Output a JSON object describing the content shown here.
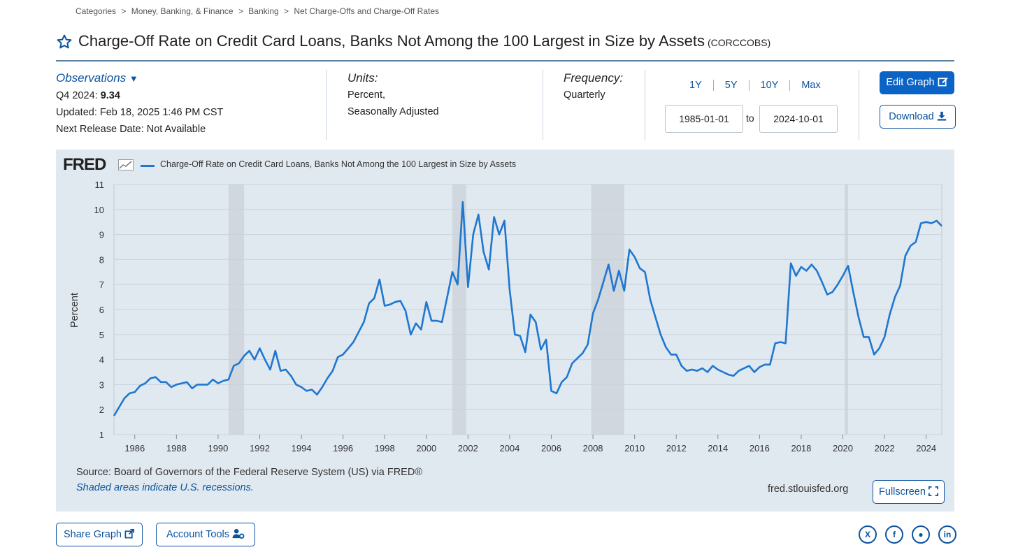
{
  "breadcrumbs": [
    "Categories",
    ">",
    "Money, Banking, & Finance",
    ">",
    "Banking",
    ">",
    "Net Charge-Offs and Charge-Off Rates"
  ],
  "header": {
    "title": "Charge-Off Rate on Credit Card Loans, Banks Not Among the 100 Largest in Size by Assets",
    "series_code": "(CORCCOBS)"
  },
  "observations": {
    "label": "Observations",
    "latest_period": "Q4 2024:",
    "latest_value": "9.34",
    "updated": "Updated: Feb 18, 2025 1:46 PM CST",
    "next_release": "Next Release Date: Not Available"
  },
  "units": {
    "label": "Units:",
    "line1": "Percent,",
    "line2": "Seasonally Adjusted"
  },
  "frequency": {
    "label": "Frequency:",
    "value": "Quarterly"
  },
  "ranges": [
    "1Y",
    "5Y",
    "10Y",
    "Max"
  ],
  "dates": {
    "start": "1985-01-01",
    "separator": "to",
    "end": "2024-10-01"
  },
  "buttons": {
    "edit_graph": "Edit Graph",
    "download": "Download",
    "fullscreen": "Fullscreen",
    "share_graph": "Share Graph",
    "account_tools": "Account Tools"
  },
  "chart_footer": {
    "logo": "FRED",
    "source": "Source: Board of Governors of the Federal Reserve System (US) via FRED®",
    "shaded_note": "Shaded areas indicate U.S. recessions.",
    "url": "fred.stlouisfed.org"
  },
  "social_icons": [
    "x-icon",
    "facebook-icon",
    "reddit-icon",
    "linkedin-icon"
  ],
  "colors": {
    "line": "#1f77d0",
    "accent": "#0c63c6",
    "link": "#0c54a0",
    "panel": "#e1e9f0",
    "recession": "#c9d0d8"
  },
  "chart_data": {
    "type": "line",
    "title": "",
    "ylabel": "Percent",
    "xlabel": "",
    "xlim": [
      1985.0,
      2024.75
    ],
    "ylim": [
      1,
      11
    ],
    "yticks": [
      "1",
      "2",
      "3",
      "4",
      "5",
      "6",
      "7",
      "8",
      "9",
      "10",
      "11"
    ],
    "xticks": [
      "1986",
      "1988",
      "1990",
      "1992",
      "1994",
      "1996",
      "1998",
      "2000",
      "2002",
      "2004",
      "2006",
      "2008",
      "2010",
      "2012",
      "2014",
      "2016",
      "2018",
      "2020",
      "2022",
      "2024"
    ],
    "legend": "top-left",
    "grid": true,
    "series": [
      {
        "name": "Charge-Off Rate on Credit Card Loans, Banks Not Among the 100 Largest in Size by Assets",
        "x": [
          1985.0,
          1985.25,
          1985.5,
          1985.75,
          1986.0,
          1986.25,
          1986.5,
          1986.75,
          1987.0,
          1987.25,
          1987.5,
          1987.75,
          1988.0,
          1988.25,
          1988.5,
          1988.75,
          1989.0,
          1989.25,
          1989.5,
          1989.75,
          1990.0,
          1990.25,
          1990.5,
          1990.75,
          1991.0,
          1991.25,
          1991.5,
          1991.75,
          1992.0,
          1992.25,
          1992.5,
          1992.75,
          1993.0,
          1993.25,
          1993.5,
          1993.75,
          1994.0,
          1994.25,
          1994.5,
          1994.75,
          1995.0,
          1995.25,
          1995.5,
          1995.75,
          1996.0,
          1996.25,
          1996.5,
          1996.75,
          1997.0,
          1997.25,
          1997.5,
          1997.75,
          1998.0,
          1998.25,
          1998.5,
          1998.75,
          1999.0,
          1999.25,
          1999.5,
          1999.75,
          2000.0,
          2000.25,
          2000.5,
          2000.75,
          2001.0,
          2001.25,
          2001.5,
          2001.75,
          2002.0,
          2002.25,
          2002.5,
          2002.75,
          2003.0,
          2003.25,
          2003.5,
          2003.75,
          2004.0,
          2004.25,
          2004.5,
          2004.75,
          2005.0,
          2005.25,
          2005.5,
          2005.75,
          2006.0,
          2006.25,
          2006.5,
          2006.75,
          2007.0,
          2007.25,
          2007.5,
          2007.75,
          2008.0,
          2008.25,
          2008.5,
          2008.75,
          2009.0,
          2009.25,
          2009.5,
          2009.75,
          2010.0,
          2010.25,
          2010.5,
          2010.75,
          2011.0,
          2011.25,
          2011.5,
          2011.75,
          2012.0,
          2012.25,
          2012.5,
          2012.75,
          2013.0,
          2013.25,
          2013.5,
          2013.75,
          2014.0,
          2014.25,
          2014.5,
          2014.75,
          2015.0,
          2015.25,
          2015.5,
          2015.75,
          2016.0,
          2016.25,
          2016.5,
          2016.75,
          2017.0,
          2017.25,
          2017.5,
          2017.75,
          2018.0,
          2018.25,
          2018.5,
          2018.75,
          2019.0,
          2019.25,
          2019.5,
          2019.75,
          2020.0,
          2020.25,
          2020.5,
          2020.75,
          2021.0,
          2021.25,
          2021.5,
          2021.75,
          2022.0,
          2022.25,
          2022.5,
          2022.75,
          2023.0,
          2023.25,
          2023.5,
          2023.75,
          2024.0,
          2024.25,
          2024.5,
          2024.75
        ],
        "y": [
          1.75,
          2.1,
          2.45,
          2.65,
          2.7,
          2.95,
          3.05,
          3.25,
          3.3,
          3.1,
          3.1,
          2.9,
          3.0,
          3.05,
          3.1,
          2.85,
          3.0,
          3.0,
          3.0,
          3.2,
          3.05,
          3.15,
          3.2,
          3.75,
          3.85,
          4.15,
          4.35,
          4.0,
          4.45,
          4.0,
          3.6,
          4.35,
          3.55,
          3.6,
          3.35,
          3.0,
          2.9,
          2.75,
          2.8,
          2.6,
          2.9,
          3.25,
          3.55,
          4.1,
          4.2,
          4.45,
          4.7,
          5.1,
          5.5,
          6.25,
          6.45,
          7.2,
          6.15,
          6.2,
          6.3,
          6.35,
          5.95,
          5.0,
          5.45,
          5.2,
          6.3,
          5.55,
          5.55,
          5.5,
          6.5,
          7.5,
          7.0,
          10.3,
          6.9,
          9.0,
          9.8,
          8.3,
          7.6,
          9.7,
          9.0,
          9.55,
          6.8,
          5.0,
          4.95,
          4.3,
          5.8,
          5.5,
          4.4,
          4.8,
          2.75,
          2.65,
          3.1,
          3.3,
          3.85,
          4.05,
          4.25,
          4.6,
          5.85,
          6.4,
          7.1,
          7.8,
          6.75,
          7.55,
          6.75,
          8.4,
          8.1,
          7.65,
          7.5,
          6.4,
          5.7,
          5.0,
          4.5,
          4.2,
          4.2,
          3.75,
          3.55,
          3.6,
          3.55,
          3.65,
          3.5,
          3.75,
          3.6,
          3.5,
          3.4,
          3.35,
          3.55,
          3.65,
          3.75,
          3.5,
          3.7,
          3.8,
          3.8,
          4.65,
          4.7,
          4.65,
          7.85,
          7.35,
          7.7,
          7.55,
          7.8,
          7.55,
          7.1,
          6.6,
          6.7,
          7.0,
          7.35,
          7.75,
          6.7,
          5.7,
          4.9,
          4.9,
          4.2,
          4.45,
          4.9,
          5.8,
          6.5,
          6.95,
          8.15,
          8.55,
          8.7,
          9.45,
          9.5,
          9.45,
          9.55,
          9.34
        ]
      }
    ],
    "recessions": [
      [
        1990.5,
        1991.25
      ],
      [
        2001.25,
        2001.917
      ],
      [
        2007.917,
        2009.5
      ],
      [
        2020.083,
        2020.25
      ]
    ]
  }
}
